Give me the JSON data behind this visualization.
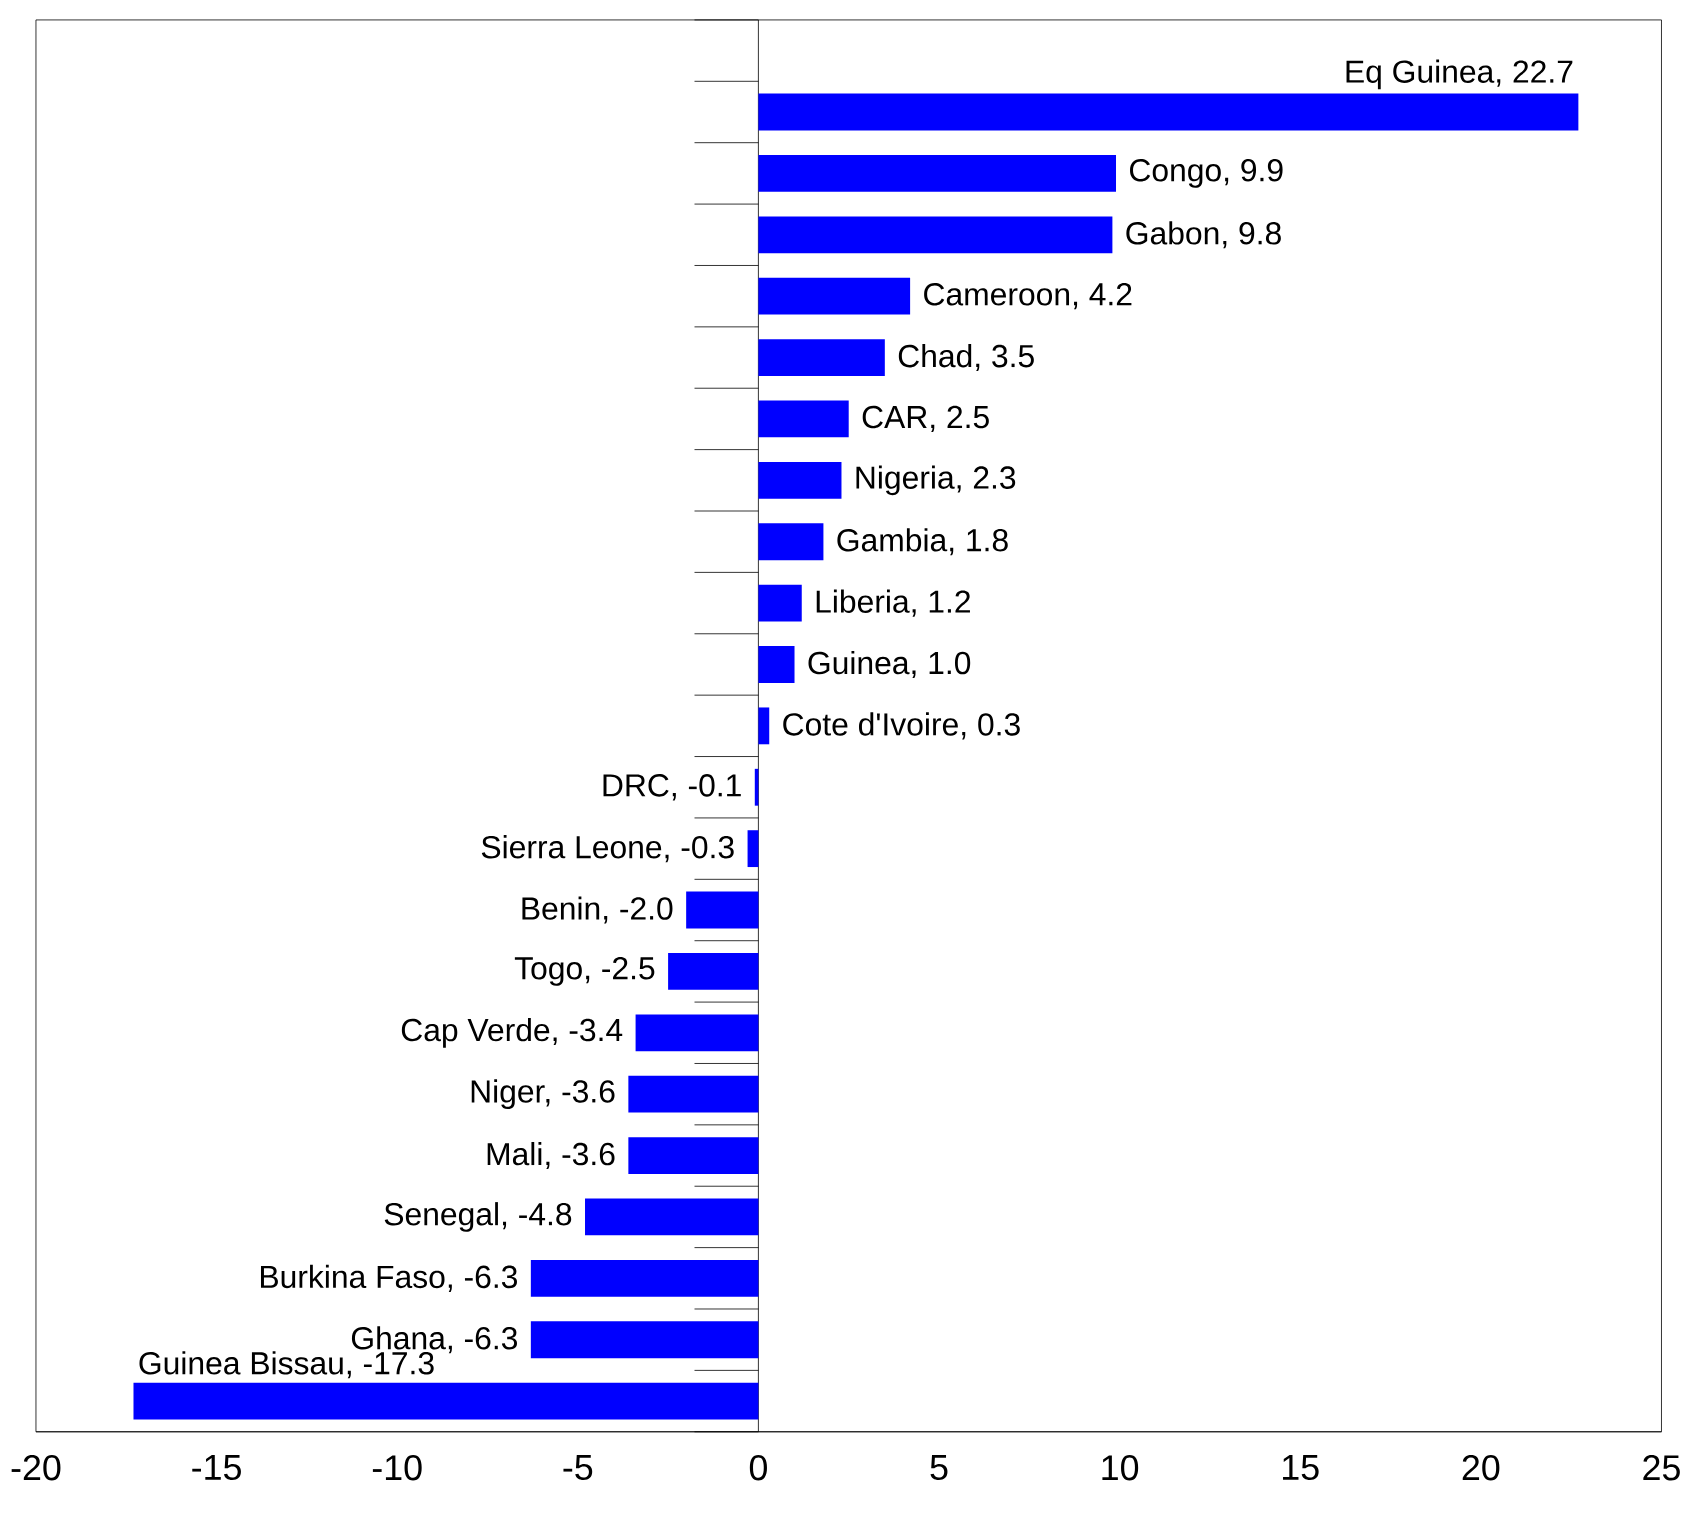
{
  "chart_data": {
    "type": "bar",
    "orientation": "horizontal",
    "categories": [
      null,
      null,
      null,
      null,
      null,
      null,
      null,
      null,
      null,
      null,
      null,
      null,
      null,
      null,
      null,
      null,
      null,
      null,
      null,
      null,
      null,
      null,
      null
    ],
    "values": [
      null,
      22.7,
      9.9,
      9.8,
      4.2,
      3.5,
      2.5,
      2.3,
      1.8,
      1.2,
      1.0,
      0.3,
      -0.1,
      -0.3,
      -2.0,
      -2.5,
      -3.4,
      -3.6,
      -3.6,
      -4.8,
      -6.3,
      -6.3,
      -17.3
    ],
    "value_labels": [
      null,
      "Eq Guinea, 22.7",
      "Congo, 9.9",
      "Gabon, 9.8",
      "Cameroon, 4.2",
      "Chad, 3.5",
      "CAR, 2.5",
      "Nigeria, 2.3",
      "Gambia, 1.8",
      "Liberia, 1.2",
      "Guinea, 1.0",
      "Cote d'Ivoire, 0.3",
      "DRC, -0.1",
      "Sierra Leone, -0.3",
      "Benin, -2.0",
      "Togo, -2.5",
      "Cap Verde, -3.4",
      "Niger, -3.6",
      "Mali, -3.6",
      "Senegal, -4.8",
      "Burkina Faso, -6.3",
      "Ghana, -6.3",
      "Guinea Bissau, -17.3"
    ],
    "color": "#0000ff",
    "xlim": [
      -20,
      25
    ],
    "xticks": [
      -20,
      -15,
      -10,
      -5,
      0,
      5,
      10,
      15,
      20,
      25
    ]
  }
}
